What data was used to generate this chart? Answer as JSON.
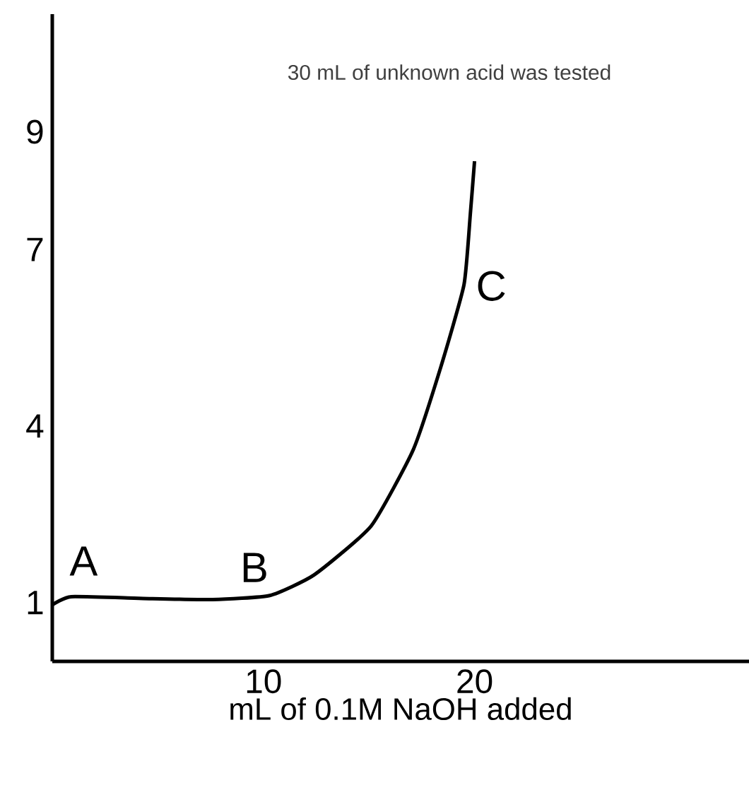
{
  "chart_data": {
    "type": "line",
    "title": "30 mL of unknown acid was tested",
    "xlabel": "mL of 0.1M NaOH added",
    "x": [
      0,
      0.9,
      4.3,
      7.6,
      10.3,
      12.4,
      15.1,
      17.1,
      18.4,
      19.5,
      19.8,
      20
    ],
    "values": [
      0.96,
      1.1,
      1.07,
      1.05,
      1.12,
      1.47,
      2.3,
      3.6,
      5.0,
      6.4,
      7.6,
      8.5
    ],
    "color": "#000000",
    "xlim": [
      0,
      33
    ],
    "ylim": [
      0,
      11
    ],
    "xticks": [
      10,
      20
    ],
    "yticks": [
      1,
      4,
      7,
      9
    ],
    "annotations": [
      "A",
      "B",
      "C"
    ]
  }
}
